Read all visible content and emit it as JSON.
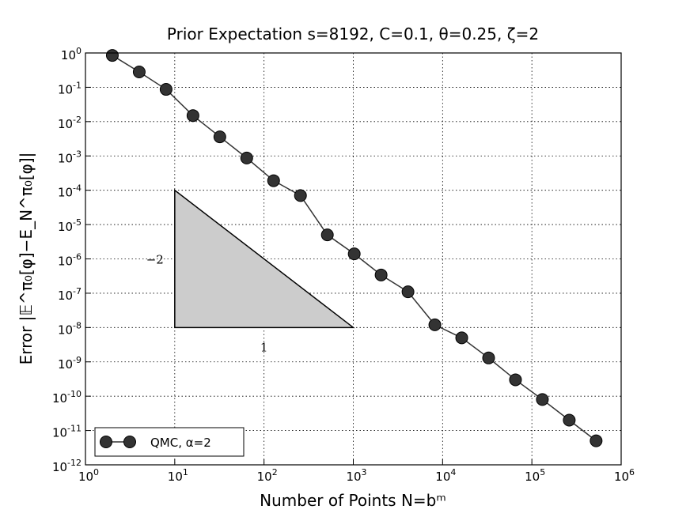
{
  "chart_data": {
    "type": "line",
    "title": "Prior Expectation s=8192, C=0.1, θ=0.25, ζ=2",
    "x_label": "Number of Points N=bᵐ",
    "y_label": "Error |𝔼^π₀[φ]−E_N^π₀[φ]|",
    "log_x": true,
    "log_y": true,
    "grid": true,
    "legend_position": "lower left",
    "x": [
      2,
      4,
      8,
      16,
      32,
      64,
      128,
      256,
      512,
      1024,
      2048,
      4096,
      8192,
      16384,
      32768,
      65536,
      131072,
      262144,
      524288
    ],
    "series": [
      {
        "name": "QMC, α=2",
        "color": "#333333",
        "values": [
          0.85,
          0.28,
          0.087,
          0.015,
          0.0036,
          0.00087,
          0.00019,
          7e-05,
          5e-06,
          1.4e-06,
          3.4e-07,
          1.1e-07,
          1.2e-08,
          5e-09,
          1.3e-09,
          3e-10,
          8e-11,
          2e-11,
          5e-12
        ]
      }
    ],
    "xlim": [
      1,
      1000000
    ],
    "ylim": [
      1e-12,
      1
    ],
    "xticks": [
      {
        "value": 1,
        "label": "10",
        "exponent": "0"
      },
      {
        "value": 10,
        "label": "10",
        "exponent": "1"
      },
      {
        "value": 100,
        "label": "10",
        "exponent": "2"
      },
      {
        "value": 1000,
        "label": "10",
        "exponent": "3"
      },
      {
        "value": 10000,
        "label": "10",
        "exponent": "4"
      },
      {
        "value": 100000,
        "label": "10",
        "exponent": "5"
      },
      {
        "value": 1000000,
        "label": "10",
        "exponent": "6"
      }
    ],
    "yticks": [
      {
        "value": 1e-12,
        "label": "10",
        "exponent": "-12"
      },
      {
        "value": 1e-11,
        "label": "10",
        "exponent": "-11"
      },
      {
        "value": 1e-10,
        "label": "10",
        "exponent": "-10"
      },
      {
        "value": 1e-09,
        "label": "10",
        "exponent": "-9"
      },
      {
        "value": 1e-08,
        "label": "10",
        "exponent": "-8"
      },
      {
        "value": 1e-07,
        "label": "10",
        "exponent": "-7"
      },
      {
        "value": 1e-06,
        "label": "10",
        "exponent": "-6"
      },
      {
        "value": 1e-05,
        "label": "10",
        "exponent": "-5"
      },
      {
        "value": 0.0001,
        "label": "10",
        "exponent": "-4"
      },
      {
        "value": 0.001,
        "label": "10",
        "exponent": "-3"
      },
      {
        "value": 0.01,
        "label": "10",
        "exponent": "-2"
      },
      {
        "value": 0.1,
        "label": "10",
        "exponent": "-1"
      },
      {
        "value": 1,
        "label": "10",
        "exponent": "0"
      }
    ],
    "slope_triangle": {
      "x": [
        10,
        10,
        1000
      ],
      "y": [
        0.0001,
        1e-08,
        1e-08
      ],
      "color": "#cccccc",
      "vertical_label": "−2",
      "horizontal_label": "1"
    }
  }
}
